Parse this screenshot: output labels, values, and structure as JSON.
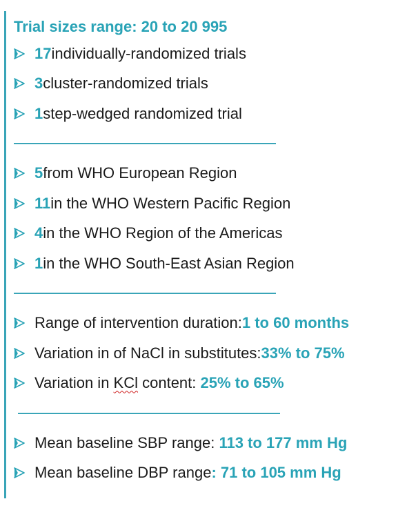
{
  "accent_color": "#29a3b6",
  "title": "Trial sizes range: 20 to 20 995",
  "section1": [
    {
      "num": "17",
      "text": " individually-randomized trials"
    },
    {
      "num": "3",
      "text": " cluster-randomized trials"
    },
    {
      "num": "1",
      "text": " step-wedged randomized trial"
    }
  ],
  "section2": [
    {
      "num": "5",
      "text": " from WHO European Region"
    },
    {
      "num": "11",
      "text": " in the WHO Western Pacific Region"
    },
    {
      "num": "4",
      "text": " in the WHO Region of the Americas"
    },
    {
      "num": "1",
      "text": " in the WHO South-East Asian Region"
    }
  ],
  "section3": {
    "duration": {
      "label": "Range of intervention duration: ",
      "value": "1 to 60 months"
    },
    "nacl": {
      "label": "Variation in of NaCl in substitutes: ",
      "value": "33% to 75%"
    },
    "kcl": {
      "label_pre": "Variation in ",
      "label_word": "KCl",
      "label_post": " content: ",
      "value": "25% to 65%"
    }
  },
  "section4": {
    "sbp": {
      "label": "Mean baseline SBP range: ",
      "value": "113 to 177 mm Hg"
    },
    "dbp": {
      "label": "Mean baseline DBP range",
      "value": ": 71 to 105 mm Hg"
    }
  }
}
